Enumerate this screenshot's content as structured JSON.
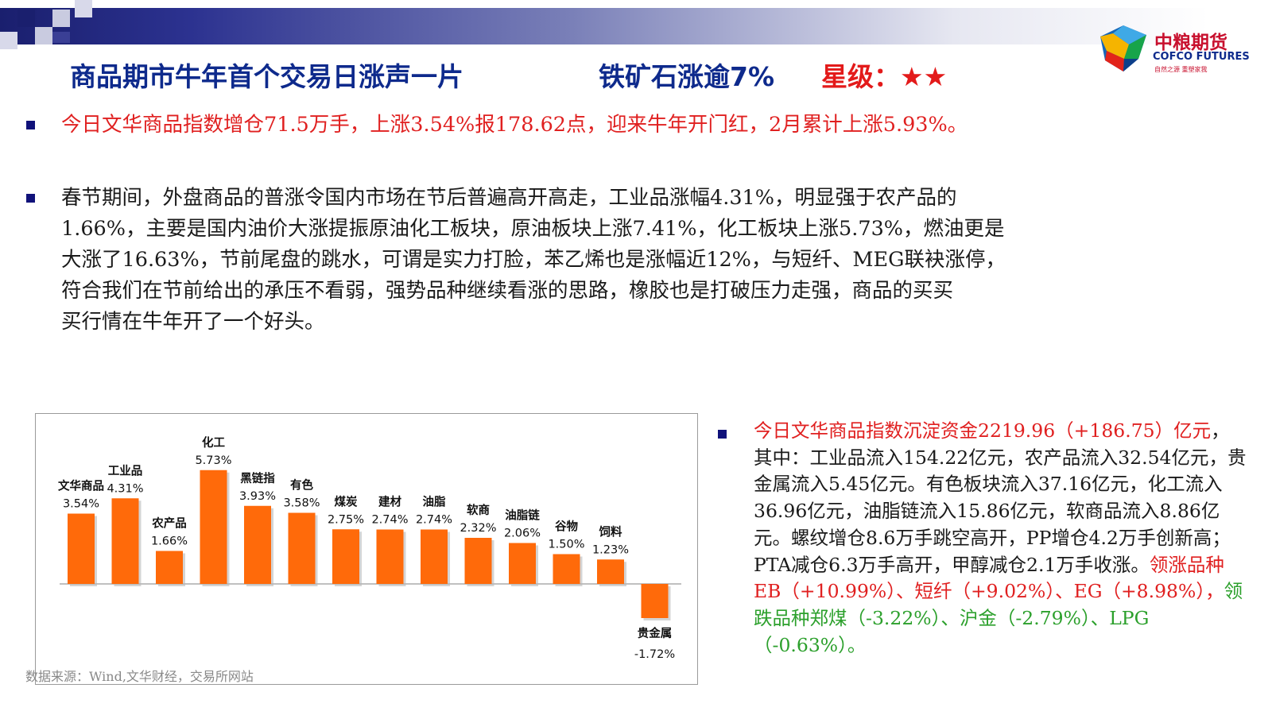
{
  "header": {
    "title_main": "商品期市牛年首个交易日涨声一片",
    "title_sub": "铁矿石涨逾7%",
    "rating": "星级：★★"
  },
  "logo": {
    "name_cn": "中粮期货",
    "name_en": "COFCO FUTURES",
    "tagline": "自然之源  重塑家我"
  },
  "colors": {
    "navy": "#0e2a8c",
    "red": "#e02020",
    "green": "#2ca02c",
    "bar": "#ff6a0a"
  },
  "bullets": {
    "b1": "今日文华商品指数增仓71.5万手，上涨3.54%报178.62点，迎来牛年开门红，2月累计上涨5.93%。",
    "b2": [
      "春节期间，外盘商品的普涨令国内市场在节后普遍高开高走，工业品涨幅4.31%，明显强于农产品的",
      "1.66%，主要是国内油价大涨提振原油化工板块，原油板块上涨7.41%，化工板块上涨5.73%，燃油更是",
      "大涨了16.63%，节前尾盘的跳水，可谓是实力打脸，苯乙烯也是涨幅近12%，与短纤、MEG联袂涨停，",
      "符合我们在节前给出的承压不看弱，强势品种继续看涨的思路，橡胶也是打破压力走强，商品的买买",
      "买行情在牛年开了一个好头。"
    ],
    "b3_red": "今日文华商品指数沉淀资金2219.96（+186.75）亿元",
    "b3_black": "，其中：工业品流入154.22亿元，农产品流入32.54亿元，贵金属流入5.45亿元。有色板块流入37.16亿元，化工流入36.96亿元，油脂链流入15.86亿元，软商品流入8.86亿元。螺纹增仓8.6万手跳空高开，PP增仓4.2万手创新高；PTA减仓6.3万手高开，甲醇减仓2.1万手收涨。",
    "b3_red2": "领涨品种EB（+10.99%）、短纤（+9.02%）、EG（+8.98%），",
    "b3_green": "领跌品种郑煤（-3.22%）、沪金（-2.79%）、LPG（-0.63%）。"
  },
  "source": "数据来源：Wind,文华财经，交易所网站",
  "chart_data": {
    "type": "bar",
    "categories": [
      "文华商品",
      "工业品",
      "农产品",
      "化工",
      "黑链指",
      "有色",
      "煤炭",
      "建材",
      "油脂",
      "软商",
      "油脂链",
      "谷物",
      "饲料",
      "贵金属"
    ],
    "values": [
      3.54,
      4.31,
      1.66,
      5.73,
      3.93,
      3.58,
      2.75,
      2.74,
      2.74,
      2.32,
      2.06,
      1.5,
      1.23,
      -1.72
    ],
    "value_labels": [
      "3.54%",
      "4.31%",
      "1.66%",
      "5.73%",
      "3.93%",
      "3.58%",
      "2.75%",
      "2.74%",
      "2.74%",
      "2.32%",
      "2.06%",
      "1.50%",
      "1.23%",
      "-1.72%"
    ],
    "units": "%",
    "grid": false,
    "legend": "none"
  }
}
